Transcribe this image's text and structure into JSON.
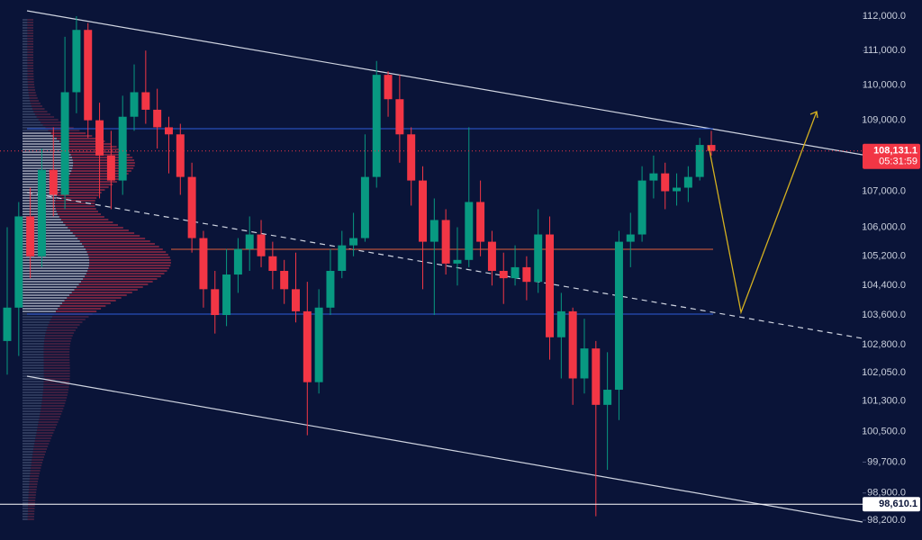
{
  "chart_data": {
    "type": "candlestick",
    "log_scale": true,
    "up_color": "#089981",
    "down_color": "#f23645",
    "ylim": [
      98200,
      112000
    ],
    "yticks": [
      {
        "value": 112000,
        "label": "112,000.0"
      },
      {
        "value": 111000,
        "label": "111,000.0"
      },
      {
        "value": 110000,
        "label": "110,000.0"
      },
      {
        "value": 109000,
        "label": "109,000.0"
      },
      {
        "value": 107000,
        "label": "107,000.0"
      },
      {
        "value": 106000,
        "label": "106,000.0"
      },
      {
        "value": 105200,
        "label": "105,200.0"
      },
      {
        "value": 104400,
        "label": "104,400.0"
      },
      {
        "value": 103600,
        "label": "103,600.0"
      },
      {
        "value": 102800,
        "label": "102,800.0"
      },
      {
        "value": 102050,
        "label": "102,050.0"
      },
      {
        "value": 101300,
        "label": "101,300.0"
      },
      {
        "value": 100500,
        "label": "100,500.0"
      },
      {
        "value": 99700,
        "label": "99,700.0"
      },
      {
        "value": 98900,
        "label": "98,900.0"
      },
      {
        "value": 98200,
        "label": "98,200.0"
      }
    ],
    "price_labels": [
      {
        "value": 108131.1,
        "label": "108,131.1",
        "countdown": "05:31:59",
        "color": "#f23645"
      },
      {
        "value": 98610.1,
        "label": "98,610.1",
        "color": "#ffffff"
      }
    ],
    "open": [
      102900,
      103800,
      106300,
      105200,
      107600,
      106900,
      109800,
      111600,
      109000,
      108000,
      107300,
      109100,
      109800,
      109300,
      108800,
      108600,
      107400,
      105700,
      104300,
      103600,
      104700,
      105400,
      105800,
      105200,
      104800,
      104300,
      103700,
      101800,
      103800,
      104800,
      105500,
      105700,
      107400,
      110300,
      109600,
      108600,
      107300,
      105600,
      106200,
      105000,
      105100,
      106700,
      105600,
      104800,
      104600,
      104900,
      104500,
      105800,
      103000,
      103700,
      101900,
      102700,
      101200,
      101600,
      105600,
      105800,
      107300,
      107500,
      107000,
      107100,
      107400,
      108300
    ],
    "high": [
      106000,
      106700,
      107100,
      108200,
      108800,
      111400,
      112000,
      111800,
      109500,
      108700,
      109700,
      110600,
      111000,
      109900,
      109100,
      108900,
      107800,
      105900,
      104800,
      105400,
      105700,
      106300,
      106200,
      105600,
      105100,
      105300,
      104500,
      104300,
      105400,
      105900,
      106400,
      108600,
      110700,
      110400,
      110300,
      108800,
      107700,
      106800,
      106500,
      106000,
      108800,
      107300,
      105900,
      105300,
      105500,
      105200,
      106500,
      106300,
      104200,
      103800,
      103500,
      102900,
      102600,
      105900,
      106400,
      107700,
      108000,
      107800,
      107500,
      107700,
      108500,
      108700
    ],
    "low": [
      102000,
      102500,
      104600,
      104900,
      106300,
      106500,
      109200,
      108500,
      106800,
      106500,
      106900,
      108700,
      108900,
      108200,
      107500,
      106900,
      105300,
      103800,
      103100,
      103300,
      104200,
      104800,
      104900,
      104300,
      103900,
      103400,
      100400,
      101500,
      103600,
      104600,
      105200,
      105600,
      107100,
      109100,
      107800,
      106600,
      104300,
      103600,
      104700,
      104400,
      104900,
      105200,
      104400,
      103900,
      104400,
      104000,
      104200,
      102400,
      101900,
      101200,
      101500,
      98300,
      99500,
      100800,
      104900,
      105600,
      106800,
      106500,
      106600,
      106700,
      107300,
      108000
    ],
    "close": [
      103800,
      106300,
      105200,
      107600,
      106900,
      109800,
      111600,
      109000,
      108000,
      107300,
      109100,
      109800,
      109300,
      108800,
      108600,
      107400,
      105700,
      104300,
      103600,
      104700,
      105400,
      105800,
      105200,
      104800,
      104300,
      103700,
      101800,
      103800,
      104800,
      105500,
      105700,
      107400,
      110300,
      109600,
      108600,
      107300,
      105600,
      106200,
      105000,
      105100,
      106700,
      105600,
      104800,
      104600,
      104900,
      104500,
      105800,
      103000,
      103700,
      101900,
      102700,
      101200,
      101600,
      105600,
      105800,
      107300,
      107500,
      107000,
      107100,
      107400,
      108300,
      108131.1
    ]
  }
}
